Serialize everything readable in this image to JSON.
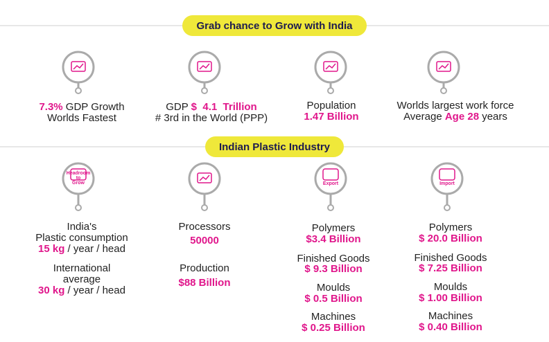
{
  "sections": [
    {
      "title": "Grab chance to Grow with India",
      "items": [
        {
          "lines": [
            [
              {
                "text": "7.3%",
                "accent": true
              },
              {
                "text": " GDP Growth"
              }
            ],
            [
              {
                "text": "Worlds Fastest"
              }
            ]
          ]
        },
        {
          "lines": [
            [
              {
                "text": "GDP "
              },
              {
                "text": "$  4.1  Trillion",
                "accent": true
              }
            ],
            [
              {
                "text": "# 3rd in the World (PPP)"
              }
            ]
          ]
        },
        {
          "lines": [
            [
              {
                "text": "Population"
              }
            ],
            [
              {
                "text": "1.47 Billion",
                "accent": true
              }
            ]
          ]
        },
        {
          "lines": [
            [
              {
                "text": "Worlds largest work force"
              }
            ],
            [
              {
                "text": "Average "
              },
              {
                "text": "Age 28",
                "accent": true
              },
              {
                "text": " years"
              }
            ]
          ]
        }
      ]
    },
    {
      "title": "Indian Plastic Industry",
      "items": [
        {
          "icon_label": [
            "Headroom",
            "to",
            "Grow"
          ],
          "lines": [
            [
              {
                "text": "India's"
              }
            ],
            [
              {
                "text": "Plastic consumption"
              }
            ],
            [
              {
                "text": "15 kg",
                "accent": true
              },
              {
                "text": " / year / head"
              }
            ],
            [
              {
                "text": "International"
              }
            ],
            [
              {
                "text": "average"
              }
            ],
            [
              {
                "text": "30 kg",
                "accent": true
              },
              {
                "text": " / year / head"
              }
            ]
          ]
        },
        {
          "lines": [
            [
              {
                "text": "Processors"
              }
            ],
            [
              {
                "text": "50000",
                "accent": true
              }
            ],
            [
              {
                "text": "Production"
              }
            ],
            [
              {
                "text": "$88 Billion",
                "accent": true
              }
            ]
          ]
        },
        {
          "icon_label": [
            "Export"
          ],
          "lines": [
            [
              {
                "text": "Polymers"
              }
            ],
            [
              {
                "text": "$3.4 Billion",
                "accent": true
              }
            ],
            [
              {
                "text": "Finished Goods"
              }
            ],
            [
              {
                "text": "$ 9.3 Billion",
                "accent": true
              }
            ],
            [
              {
                "text": "Moulds"
              }
            ],
            [
              {
                "text": "$ 0.5 Billion",
                "accent": true
              }
            ],
            [
              {
                "text": "Machines"
              }
            ],
            [
              {
                "text": "$ 0.25 Billion",
                "accent": true
              }
            ]
          ]
        },
        {
          "icon_label": [
            "Import"
          ],
          "lines": [
            [
              {
                "text": "Polymers"
              }
            ],
            [
              {
                "text": "$ 20.0 Billion",
                "accent": true
              }
            ],
            [
              {
                "text": "Finished Goods"
              }
            ],
            [
              {
                "text": "$ 7.25 Billion",
                "accent": true
              }
            ],
            [
              {
                "text": "Moulds"
              }
            ],
            [
              {
                "text": "$ 1.00 Billion",
                "accent": true
              }
            ],
            [
              {
                "text": "Machines"
              }
            ],
            [
              {
                "text": "$ 0.40 Billion",
                "accent": true
              }
            ]
          ]
        }
      ]
    }
  ]
}
